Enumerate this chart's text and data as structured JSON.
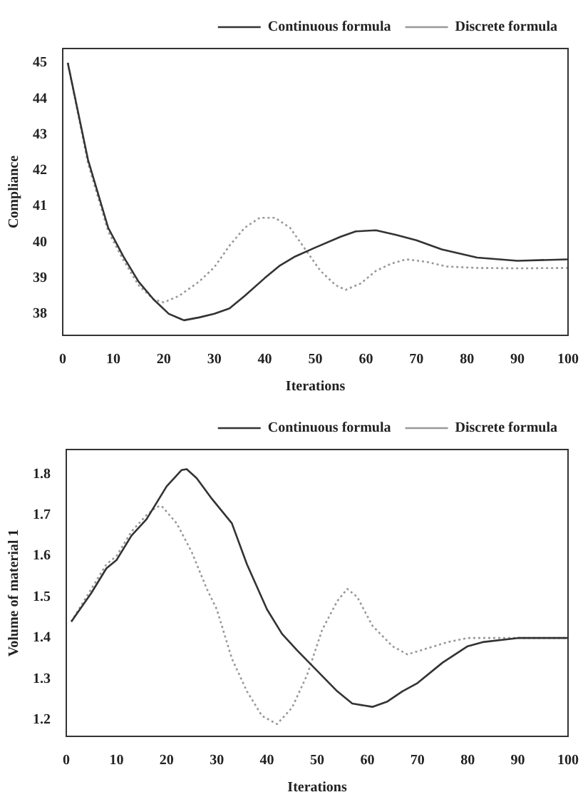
{
  "chart_data": [
    {
      "type": "line",
      "xlabel": "Iterations",
      "ylabel": "Compliance",
      "xlim": [
        0,
        100
      ],
      "xticks": [
        0,
        10,
        20,
        30,
        40,
        50,
        60,
        70,
        80,
        90,
        100
      ],
      "ylim": [
        37.4,
        45.4
      ],
      "yticks": [
        38,
        39,
        40,
        41,
        42,
        43,
        44,
        45
      ],
      "grid": false,
      "legend": "top right",
      "marker": "none",
      "series": [
        {
          "name": "Continuous formula",
          "color": "#333333",
          "line_style": "solid",
          "x": [
            1,
            5,
            9,
            12,
            15,
            18,
            21,
            24,
            27,
            30,
            33,
            36,
            40,
            43,
            46,
            50,
            55,
            58,
            62,
            66,
            70,
            75,
            82,
            90,
            100
          ],
          "values": [
            45,
            42.3,
            40.4,
            39.6,
            38.9,
            38.4,
            38.0,
            37.82,
            37.9,
            38.0,
            38.15,
            38.5,
            39.0,
            39.35,
            39.6,
            39.85,
            40.15,
            40.3,
            40.33,
            40.2,
            40.05,
            39.8,
            39.57,
            39.48,
            39.52
          ]
        },
        {
          "name": "Discrete formula",
          "color": "#999999",
          "line_style": "dotted",
          "x": [
            1,
            5,
            9,
            12,
            15,
            18,
            20,
            23,
            27,
            30,
            33,
            36,
            39,
            42,
            45,
            48,
            51,
            54,
            56,
            59,
            62,
            65,
            68,
            72,
            76,
            82,
            90,
            100
          ],
          "values": [
            45,
            42.2,
            40.3,
            39.5,
            38.8,
            38.4,
            38.32,
            38.5,
            38.9,
            39.3,
            39.9,
            40.4,
            40.68,
            40.68,
            40.4,
            39.8,
            39.2,
            38.8,
            38.67,
            38.85,
            39.2,
            39.4,
            39.52,
            39.45,
            39.32,
            39.28,
            39.27,
            39.28
          ]
        }
      ]
    },
    {
      "type": "line",
      "xlabel": "Iterations",
      "ylabel": "Volume of material 1",
      "xlim": [
        0,
        100
      ],
      "xticks": [
        0,
        10,
        20,
        30,
        40,
        50,
        60,
        70,
        80,
        90,
        100
      ],
      "ylim": [
        1.16,
        1.86
      ],
      "yticks": [
        1.2,
        1.3,
        1.4,
        1.5,
        1.6,
        1.7,
        1.8
      ],
      "grid": false,
      "legend": "top right",
      "marker": "none",
      "series": [
        {
          "name": "Continuous formula",
          "color": "#333333",
          "line_style": "solid",
          "x": [
            1,
            5,
            8,
            10,
            13,
            16,
            18,
            20,
            23,
            24,
            26,
            29,
            33,
            36,
            40,
            43,
            46,
            50,
            54,
            57,
            61,
            64,
            67,
            70,
            75,
            80,
            83,
            90,
            100
          ],
          "values": [
            1.44,
            1.51,
            1.57,
            1.59,
            1.65,
            1.69,
            1.73,
            1.77,
            1.81,
            1.812,
            1.79,
            1.74,
            1.68,
            1.58,
            1.47,
            1.41,
            1.37,
            1.32,
            1.27,
            1.24,
            1.232,
            1.245,
            1.27,
            1.29,
            1.34,
            1.38,
            1.39,
            1.4,
            1.4
          ]
        },
        {
          "name": "Discrete formula",
          "color": "#999999",
          "line_style": "dotted",
          "x": [
            1,
            5,
            8,
            10,
            13,
            16,
            18,
            19,
            22,
            25,
            28,
            30,
            33,
            36,
            39,
            42,
            45,
            48,
            51,
            54,
            56,
            58,
            61,
            65,
            68,
            72,
            76,
            80,
            90,
            100
          ],
          "values": [
            1.44,
            1.52,
            1.58,
            1.6,
            1.66,
            1.7,
            1.72,
            1.722,
            1.68,
            1.61,
            1.52,
            1.47,
            1.35,
            1.27,
            1.21,
            1.19,
            1.23,
            1.31,
            1.42,
            1.49,
            1.52,
            1.5,
            1.43,
            1.38,
            1.36,
            1.375,
            1.39,
            1.4,
            1.4,
            1.4
          ]
        }
      ]
    }
  ]
}
